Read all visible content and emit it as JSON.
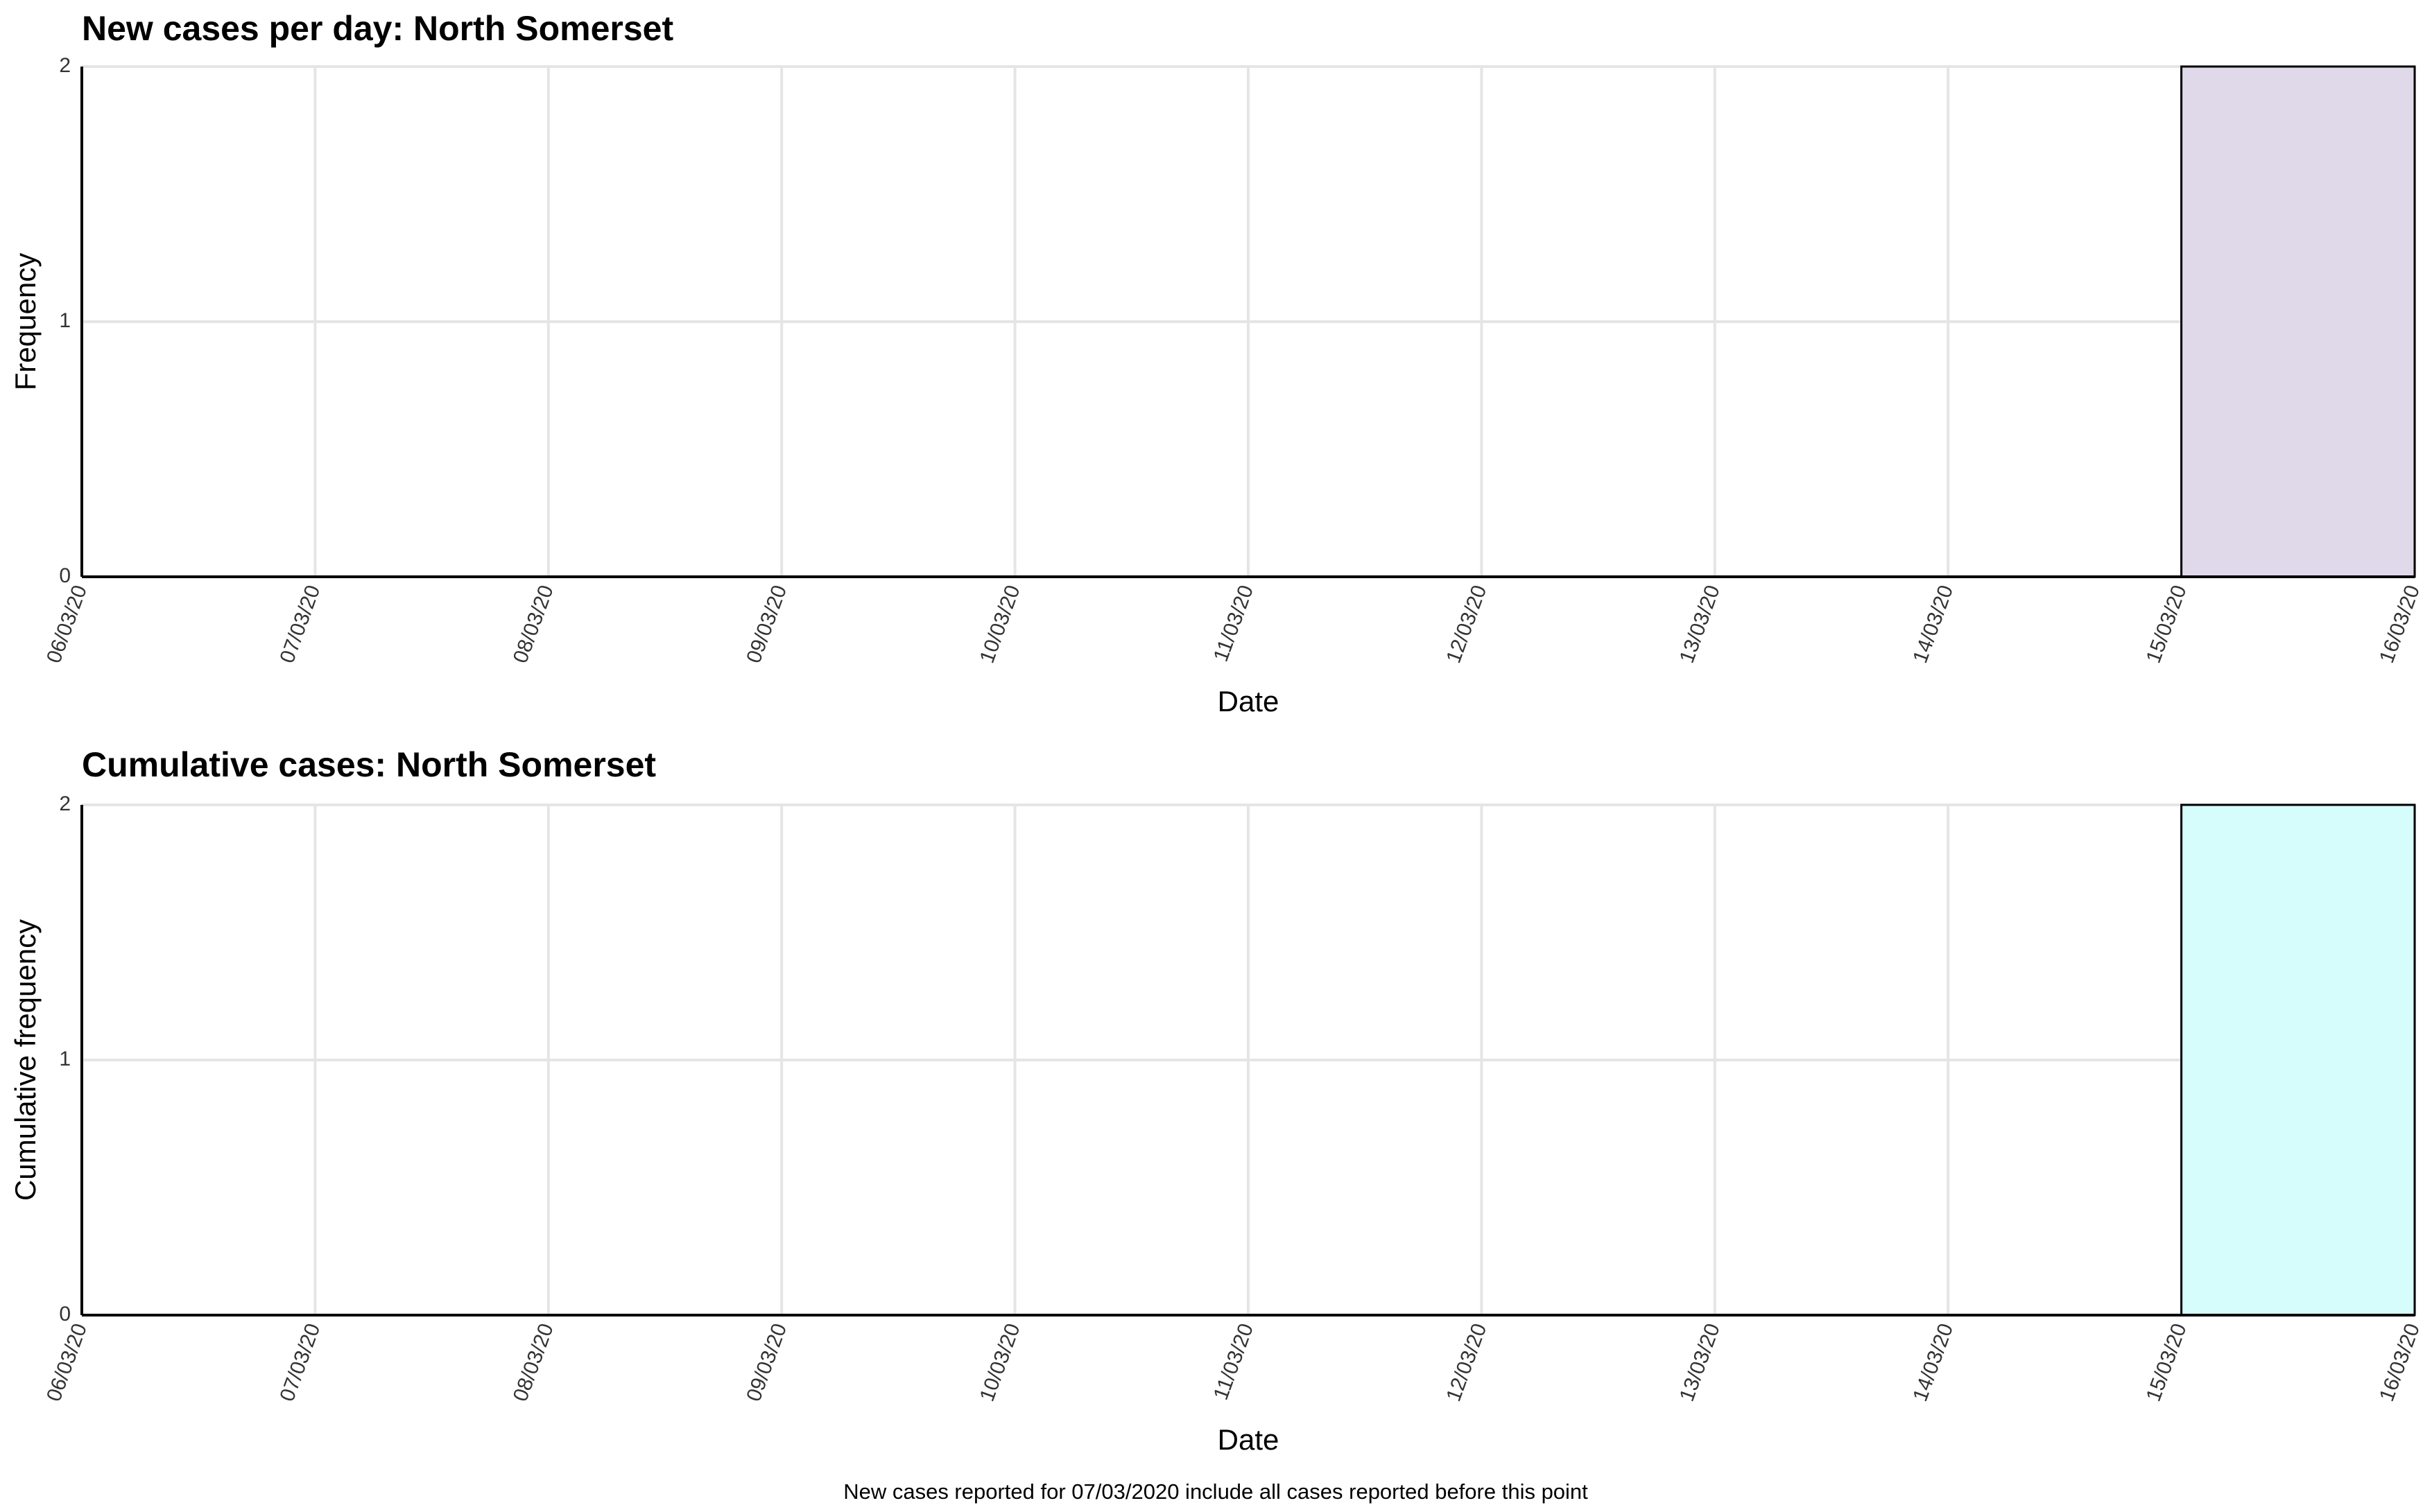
{
  "chart_data": [
    {
      "type": "histogram",
      "title": "New cases per day: North Somerset",
      "x_label": "Date",
      "y_label": "Frequency",
      "bins": [
        "06/03/20",
        "07/03/20",
        "08/03/20",
        "09/03/20",
        "10/03/20",
        "11/03/20",
        "12/03/20",
        "13/03/20",
        "14/03/20",
        "15/03/20",
        "16/03/20"
      ],
      "values": [
        0,
        0,
        0,
        0,
        0,
        0,
        0,
        0,
        0,
        2
      ],
      "color": "#e0d9ea",
      "ylim": [
        0,
        2
      ],
      "yticks": [
        0,
        1,
        2
      ],
      "grid": true
    },
    {
      "type": "histogram",
      "title": "Cumulative cases: North Somerset",
      "x_label": "Date",
      "y_label": "Cumulative frequency",
      "bins": [
        "06/03/20",
        "07/03/20",
        "08/03/20",
        "09/03/20",
        "10/03/20",
        "11/03/20",
        "12/03/20",
        "13/03/20",
        "14/03/20",
        "15/03/20",
        "16/03/20"
      ],
      "values": [
        0,
        0,
        0,
        0,
        0,
        0,
        0,
        0,
        0,
        2
      ],
      "color": "#d6fcfc",
      "ylim": [
        0,
        2
      ],
      "yticks": [
        0,
        1,
        2
      ],
      "grid": true
    }
  ],
  "footnote": "New cases reported for 07/03/2020 include all cases reported before this point"
}
